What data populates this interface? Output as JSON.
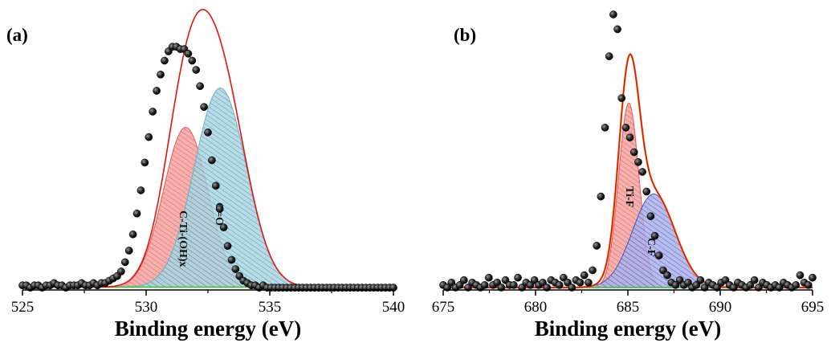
{
  "colors": {
    "envelope": "#e0140c",
    "background_line": "#2fbf2f",
    "data_points": "#1a1a1a",
    "peak_red": "#e25a57",
    "peak_blue": "#6fb0c8",
    "peak_navy": "#4a54b8",
    "peak_orange_line": "#e8a020"
  },
  "chart_data": [
    {
      "panel": "(a)",
      "type": "scatter",
      "xlabel": "Binding energy (eV)",
      "ylabel": "",
      "xlim": [
        525,
        540
      ],
      "ylim": [
        0,
        1.12
      ],
      "xticks": [
        "525",
        "530",
        "535",
        "540"
      ],
      "grid": false,
      "fit_envelope": {
        "peaks_sum": true
      },
      "peaks": [
        {
          "label": "C-Ti-(OH)x",
          "center": 531.6,
          "height": 0.69,
          "sigma": 0.9,
          "color": "peak_red"
        },
        {
          "label": "C=O",
          "center": 533.0,
          "height": 0.86,
          "sigma": 1.05,
          "color": "peak_blue"
        }
      ],
      "baseline": 0.012,
      "raw_points": {
        "x_start": 525.0,
        "x_end": 540.0,
        "count": 95,
        "y": [
          0.02,
          0.02,
          0.01,
          0.02,
          0.02,
          0.01,
          0.02,
          0.02,
          0.03,
          0.02,
          0.02,
          0.01,
          0.02,
          0.02,
          0.02,
          0.03,
          0.02,
          0.02,
          0.03,
          0.02,
          0.03,
          0.03,
          0.04,
          0.05,
          0.06,
          0.08,
          0.12,
          0.17,
          0.24,
          0.33,
          0.43,
          0.55,
          0.66,
          0.77,
          0.86,
          0.93,
          0.99,
          1.03,
          1.05,
          1.05,
          1.04,
          1.04,
          1.02,
          0.99,
          0.95,
          0.88,
          0.79,
          0.68,
          0.56,
          0.45,
          0.35,
          0.27,
          0.19,
          0.13,
          0.09,
          0.06,
          0.04,
          0.03,
          0.02,
          0.02,
          0.01,
          0.02,
          0.01,
          0.01,
          0.01,
          0.01,
          0.01,
          0.01,
          0.01,
          0.01,
          0.01,
          0.01,
          0.01,
          0.01,
          0.01,
          0.01,
          0.01,
          0.01,
          0.01,
          0.01,
          0.01,
          0.01,
          0.01,
          0.01,
          0.01,
          0.01,
          0.01,
          0.01,
          0.01,
          0.01,
          0.01,
          0.01,
          0.01,
          0.01,
          0.01
        ]
      }
    },
    {
      "panel": "(b)",
      "type": "scatter",
      "xlabel": "Binding energy (eV)",
      "ylabel": "",
      "xlim": [
        675,
        695
      ],
      "ylim": [
        0,
        1.12
      ],
      "xticks": [
        "675",
        "680",
        "685",
        "690",
        "695"
      ],
      "grid": false,
      "fit_envelope": {
        "peaks_sum": true
      },
      "peaks": [
        {
          "label": "Ti-F",
          "center": 685.05,
          "height": 0.75,
          "sigma": 0.55,
          "color": "peak_red"
        },
        {
          "label": "C-F",
          "center": 686.4,
          "height": 0.38,
          "sigma": 1.15,
          "color": "peak_navy"
        }
      ],
      "baseline": 0.01,
      "raw_points": {
        "x_start": 675.0,
        "x_end": 695.0,
        "count": 90,
        "y": [
          0.02,
          0.01,
          0.03,
          0.01,
          0.02,
          0.04,
          0.01,
          0.03,
          0.02,
          0.01,
          0.02,
          0.05,
          0.02,
          0.03,
          0.01,
          0.04,
          0.02,
          0.02,
          0.05,
          0.01,
          0.03,
          0.02,
          0.04,
          0.02,
          0.03,
          0.01,
          0.04,
          0.03,
          0.02,
          0.05,
          0.03,
          0.01,
          0.04,
          0.03,
          0.06,
          0.03,
          0.08,
          0.18,
          0.38,
          0.66,
          0.95,
          1.12,
          1.06,
          0.78,
          0.66,
          0.62,
          0.56,
          0.52,
          0.48,
          0.4,
          0.3,
          0.22,
          0.14,
          0.08,
          0.06,
          0.03,
          0.02,
          0.04,
          0.02,
          0.03,
          0.01,
          0.02,
          0.04,
          0.01,
          0.03,
          0.02,
          0.01,
          0.03,
          0.04,
          0.02,
          0.01,
          0.03,
          0.02,
          0.01,
          0.02,
          0.04,
          0.01,
          0.03,
          0.02,
          0.01,
          0.02,
          0.01,
          0.03,
          0.02,
          0.01,
          0.02,
          0.06,
          0.03,
          0.02,
          0.05
        ]
      }
    }
  ]
}
